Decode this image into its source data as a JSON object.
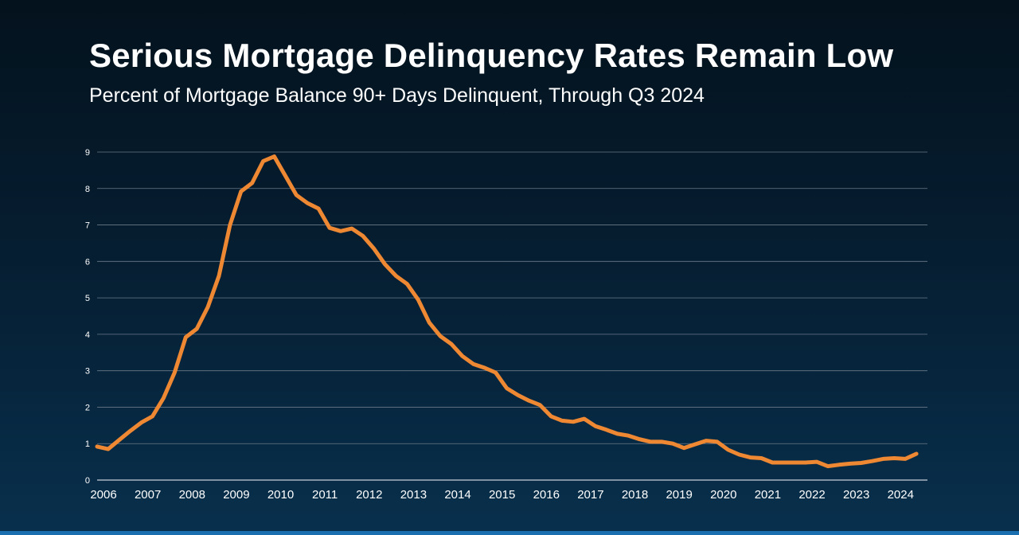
{
  "title": "Serious Mortgage Delinquency Rates Remain Low",
  "subtitle": "Percent of Mortgage Balance 90+ Days Delinquent, Through Q3 2024",
  "colors": {
    "line": "#ee8833",
    "grid": "#6a7a88",
    "text": "#ffffff",
    "accent_bar": "#1b6fae"
  },
  "chart_data": {
    "type": "line",
    "title": "Serious Mortgage Delinquency Rates Remain Low",
    "subtitle": "Percent of Mortgage Balance 90+ Days Delinquent, Through Q3 2024",
    "xlabel": "",
    "ylabel": "",
    "xlim": [
      2006,
      2024.75
    ],
    "ylim": [
      0,
      9
    ],
    "y_ticks": [
      0,
      1,
      2,
      3,
      4,
      5,
      6,
      7,
      8,
      9
    ],
    "x_ticks": [
      "2006",
      "2007",
      "2008",
      "2009",
      "2010",
      "2011",
      "2012",
      "2013",
      "2014",
      "2015",
      "2016",
      "2017",
      "2018",
      "2019",
      "2020",
      "2021",
      "2022",
      "2023",
      "2024"
    ],
    "grid": true,
    "legend": "none",
    "series": [
      {
        "x": [
          2006.0,
          2006.25,
          2006.5,
          2006.75,
          2007.0,
          2007.25,
          2007.5,
          2007.75,
          2008.0,
          2008.25,
          2008.5,
          2008.75,
          2009.0,
          2009.25,
          2009.5,
          2009.75,
          2010.0,
          2010.25,
          2010.5,
          2010.75,
          2011.0,
          2011.25,
          2011.5,
          2011.75,
          2012.0,
          2012.25,
          2012.5,
          2012.75,
          2013.0,
          2013.25,
          2013.5,
          2013.75,
          2014.0,
          2014.25,
          2014.5,
          2014.75,
          2015.0,
          2015.25,
          2015.5,
          2015.75,
          2016.0,
          2016.25,
          2016.5,
          2016.75,
          2017.0,
          2017.25,
          2017.5,
          2017.75,
          2018.0,
          2018.25,
          2018.5,
          2018.75,
          2019.0,
          2019.25,
          2019.5,
          2019.75,
          2020.0,
          2020.25,
          2020.5,
          2020.75,
          2021.0,
          2021.25,
          2021.5,
          2021.75,
          2022.0,
          2022.25,
          2022.5,
          2022.75,
          2023.0,
          2023.25,
          2023.5,
          2023.75,
          2024.0,
          2024.25,
          2024.5
        ],
        "values": [
          0.92,
          0.85,
          1.1,
          1.35,
          1.58,
          1.75,
          2.25,
          2.95,
          3.92,
          4.15,
          4.75,
          5.6,
          7.0,
          7.92,
          8.15,
          8.75,
          8.88,
          8.35,
          7.82,
          7.6,
          7.45,
          6.92,
          6.83,
          6.9,
          6.7,
          6.35,
          5.92,
          5.6,
          5.38,
          4.95,
          4.32,
          3.95,
          3.73,
          3.4,
          3.18,
          3.08,
          2.95,
          2.52,
          2.33,
          2.18,
          2.06,
          1.75,
          1.63,
          1.6,
          1.68,
          1.48,
          1.38,
          1.27,
          1.22,
          1.12,
          1.05,
          1.05,
          1.0,
          0.88,
          0.98,
          1.08,
          1.05,
          0.83,
          0.7,
          0.62,
          0.6,
          0.48,
          0.48,
          0.48,
          0.48,
          0.5,
          0.38,
          0.42,
          0.45,
          0.47,
          0.52,
          0.58,
          0.6,
          0.58,
          0.72
        ]
      }
    ]
  }
}
